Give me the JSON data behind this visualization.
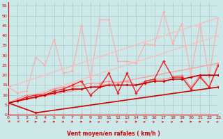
{
  "xlabel": "Vent moyen/en rafales ( km/h )",
  "xlim": [
    0,
    23
  ],
  "ylim": [
    0,
    57
  ],
  "yticks": [
    0,
    5,
    10,
    15,
    20,
    25,
    30,
    35,
    40,
    45,
    50,
    55
  ],
  "xticks": [
    0,
    1,
    2,
    3,
    4,
    5,
    6,
    7,
    8,
    9,
    10,
    11,
    12,
    13,
    14,
    15,
    16,
    17,
    18,
    19,
    20,
    21,
    22,
    23
  ],
  "background_color": "#cce8e8",
  "grid_color": "#aacccc",
  "series": [
    {
      "x": [
        0,
        1,
        2,
        3,
        4,
        5,
        6,
        7,
        8,
        9,
        10,
        11,
        12,
        13,
        14,
        15,
        16,
        17,
        18,
        19,
        20,
        21,
        22,
        23
      ],
      "y": [
        14,
        11,
        12,
        29,
        25,
        38,
        21,
        22,
        45,
        18,
        48,
        48,
        27,
        27,
        26,
        36,
        35,
        52,
        36,
        46,
        20,
        46,
        19,
        49
      ],
      "color": "#ffaaaa",
      "lw": 0.8,
      "marker": "D",
      "ms": 2.0
    },
    {
      "x": [
        0,
        23
      ],
      "y": [
        14,
        49
      ],
      "color": "#ffbbbb",
      "lw": 0.9,
      "marker": "D",
      "ms": 1.8
    },
    {
      "x": [
        0,
        23
      ],
      "y": [
        6,
        40
      ],
      "color": "#ffbbbb",
      "lw": 0.9,
      "marker": "D",
      "ms": 1.8
    },
    {
      "x": [
        0,
        1,
        2,
        3,
        4,
        5,
        6,
        7,
        8,
        9,
        10,
        11,
        12,
        13,
        14,
        15,
        16,
        17,
        18,
        19,
        20,
        21,
        22,
        23
      ],
      "y": [
        6,
        8,
        10,
        10,
        11,
        13,
        14,
        14,
        15,
        16,
        16,
        17,
        16,
        17,
        15,
        17,
        18,
        18,
        19,
        20,
        14,
        20,
        14,
        26
      ],
      "color": "#ff8888",
      "lw": 0.8,
      "marker": "D",
      "ms": 2.0
    },
    {
      "x": [
        0,
        23
      ],
      "y": [
        6,
        26
      ],
      "color": "#ff9999",
      "lw": 0.9,
      "marker": "D",
      "ms": 1.8
    },
    {
      "x": [
        0,
        1,
        2,
        3,
        4,
        5,
        6,
        7,
        8,
        9,
        10,
        11,
        12,
        13,
        14,
        15,
        16,
        17,
        18,
        19,
        20,
        21,
        22,
        23
      ],
      "y": [
        6,
        7,
        9,
        10,
        10,
        12,
        13,
        15,
        17,
        10,
        14,
        21,
        11,
        21,
        11,
        17,
        18,
        27,
        19,
        19,
        13,
        19,
        14,
        25
      ],
      "color": "#ee2222",
      "lw": 1.0,
      "marker": "D",
      "ms": 2.2
    },
    {
      "x": [
        0,
        1,
        2,
        3,
        4,
        5,
        6,
        7,
        8,
        9,
        10,
        11,
        12,
        13,
        14,
        15,
        16,
        17,
        18,
        19,
        20,
        21,
        22,
        23
      ],
      "y": [
        6,
        7,
        8,
        9,
        10,
        11,
        12,
        13,
        13,
        14,
        14,
        15,
        15,
        15,
        15,
        16,
        17,
        17,
        18,
        18,
        19,
        20,
        20,
        20
      ],
      "color": "#cc0000",
      "lw": 1.2,
      "marker": "D",
      "ms": 2.0
    },
    {
      "x": [
        0,
        3,
        23
      ],
      "y": [
        6,
        1,
        14
      ],
      "color": "#cc0000",
      "lw": 1.2,
      "marker": "D",
      "ms": 2.0
    }
  ],
  "wind_arrows": [
    0,
    1,
    2,
    3,
    4,
    5,
    6,
    7,
    8,
    9,
    10,
    11,
    12,
    13,
    14,
    15,
    16,
    17,
    18,
    19,
    20,
    21,
    22,
    23
  ],
  "arrow_angles_deg": [
    225,
    225,
    225,
    90,
    90,
    90,
    90,
    90,
    90,
    90,
    45,
    45,
    45,
    45,
    90,
    45,
    45,
    45,
    45,
    90,
    90,
    90,
    45,
    45
  ]
}
